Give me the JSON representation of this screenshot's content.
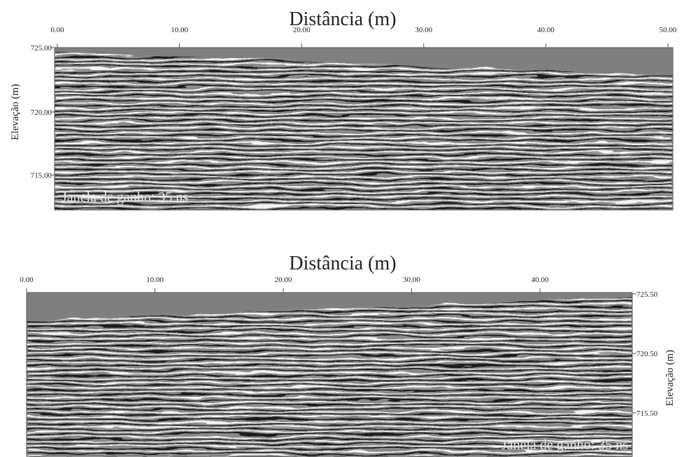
{
  "panels": [
    {
      "title": "Distância (m)",
      "x_ticks": [
        "0.00",
        "10.00",
        "20.00",
        "30.00",
        "40.00",
        "50.00"
      ],
      "y_ticks": [
        "725.00",
        "720.00",
        "715.00"
      ],
      "y_label": "Elevação (m)",
      "annotation": "Janela de ganho: 35 ns"
    },
    {
      "title": "Distância (m)",
      "x_ticks": [
        "0.00",
        "10.00",
        "20.00",
        "30.00",
        "40.00"
      ],
      "y_ticks": [
        "725.50",
        "720.50",
        "715.50"
      ],
      "y_label": "Elevação (m)",
      "annotation": "Janela de ganho: 35 ns"
    }
  ]
}
